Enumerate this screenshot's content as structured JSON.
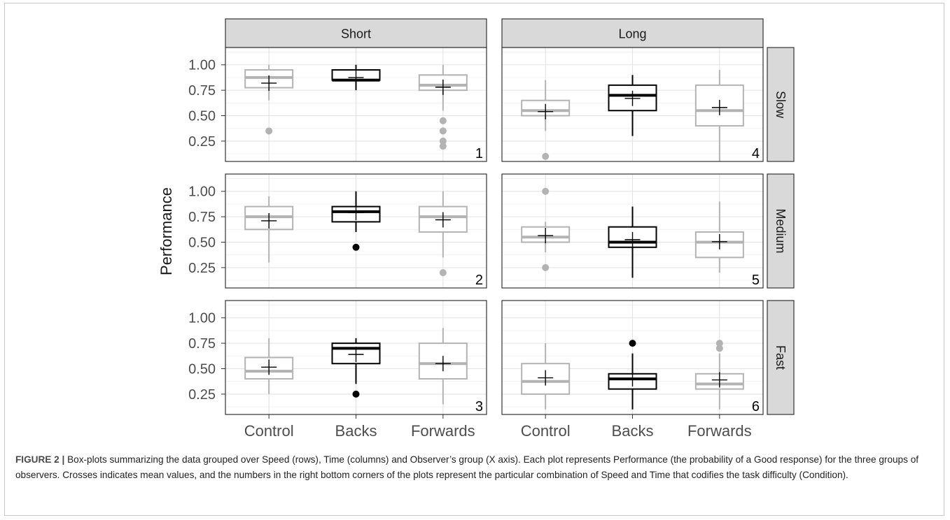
{
  "chart_data": {
    "type": "box",
    "ylabel": "Performance",
    "ylim": [
      0.05,
      1.17
    ],
    "y_ticks": [
      "0.25",
      "0.50",
      "0.75",
      "1.00"
    ],
    "y_tick_values": [
      0.25,
      0.5,
      0.75,
      1.0
    ],
    "categories": [
      "Control",
      "Backs",
      "Forwards"
    ],
    "columns": [
      "Short",
      "Long"
    ],
    "rows": [
      "Slow",
      "Medium",
      "Fast"
    ],
    "colors": {
      "Control": "#b3b3b3",
      "Backs": "#000000",
      "Forwards": "#b3b3b3"
    },
    "panels": [
      {
        "column": "Short",
        "row": "Slow",
        "label": "1",
        "boxes": [
          {
            "group": "Control",
            "lower_whisker": 0.65,
            "q1": 0.775,
            "median": 0.875,
            "q3": 0.95,
            "upper_whisker": 1.0,
            "mean": 0.82,
            "outliers": [
              0.35
            ]
          },
          {
            "group": "Backs",
            "lower_whisker": 0.75,
            "q1": 0.85,
            "median": 0.85,
            "q3": 0.95,
            "upper_whisker": 1.0,
            "mean": 0.875,
            "outliers": []
          },
          {
            "group": "Forwards",
            "lower_whisker": 0.55,
            "q1": 0.75,
            "median": 0.8,
            "q3": 0.9,
            "upper_whisker": 1.0,
            "mean": 0.78,
            "outliers": [
              0.45,
              0.35,
              0.25,
              0.2
            ]
          }
        ]
      },
      {
        "column": "Short",
        "row": "Medium",
        "label": "2",
        "boxes": [
          {
            "group": "Control",
            "lower_whisker": 0.3,
            "q1": 0.625,
            "median": 0.75,
            "q3": 0.85,
            "upper_whisker": 0.95,
            "mean": 0.71,
            "outliers": []
          },
          {
            "group": "Backs",
            "lower_whisker": 0.6,
            "q1": 0.7,
            "median": 0.8,
            "q3": 0.85,
            "upper_whisker": 1.0,
            "mean": 0.79,
            "outliers": [
              0.45
            ]
          },
          {
            "group": "Forwards",
            "lower_whisker": 0.35,
            "q1": 0.6,
            "median": 0.75,
            "q3": 0.85,
            "upper_whisker": 1.0,
            "mean": 0.72,
            "outliers": [
              0.2
            ]
          }
        ]
      },
      {
        "column": "Short",
        "row": "Fast",
        "label": "3",
        "boxes": [
          {
            "group": "Control",
            "lower_whisker": 0.25,
            "q1": 0.4,
            "median": 0.475,
            "q3": 0.61,
            "upper_whisker": 0.8,
            "mean": 0.515,
            "outliers": []
          },
          {
            "group": "Backs",
            "lower_whisker": 0.35,
            "q1": 0.55,
            "median": 0.7,
            "q3": 0.75,
            "upper_whisker": 0.8,
            "mean": 0.64,
            "outliers": [
              0.25
            ]
          },
          {
            "group": "Forwards",
            "lower_whisker": 0.15,
            "q1": 0.4,
            "median": 0.55,
            "q3": 0.75,
            "upper_whisker": 0.9,
            "mean": 0.55,
            "outliers": []
          }
        ]
      },
      {
        "column": "Long",
        "row": "Slow",
        "label": "4",
        "boxes": [
          {
            "group": "Control",
            "lower_whisker": 0.35,
            "q1": 0.5,
            "median": 0.55,
            "q3": 0.65,
            "upper_whisker": 0.85,
            "mean": 0.54,
            "outliers": [
              0.1
            ]
          },
          {
            "group": "Backs",
            "lower_whisker": 0.3,
            "q1": 0.55,
            "median": 0.7,
            "q3": 0.8,
            "upper_whisker": 0.9,
            "mean": 0.67,
            "outliers": []
          },
          {
            "group": "Forwards",
            "lower_whisker": 0.05,
            "q1": 0.4,
            "median": 0.55,
            "q3": 0.8,
            "upper_whisker": 0.95,
            "mean": 0.58,
            "outliers": []
          }
        ]
      },
      {
        "column": "Long",
        "row": "Medium",
        "label": "5",
        "boxes": [
          {
            "group": "Control",
            "lower_whisker": 0.4,
            "q1": 0.5,
            "median": 0.55,
            "q3": 0.65,
            "upper_whisker": 0.7,
            "mean": 0.565,
            "outliers": [
              1.0,
              0.25
            ]
          },
          {
            "group": "Backs",
            "lower_whisker": 0.15,
            "q1": 0.45,
            "median": 0.5,
            "q3": 0.65,
            "upper_whisker": 0.85,
            "mean": 0.525,
            "outliers": []
          },
          {
            "group": "Forwards",
            "lower_whisker": 0.2,
            "q1": 0.35,
            "median": 0.5,
            "q3": 0.6,
            "upper_whisker": 0.9,
            "mean": 0.505,
            "outliers": []
          }
        ]
      },
      {
        "column": "Long",
        "row": "Fast",
        "label": "6",
        "boxes": [
          {
            "group": "Control",
            "lower_whisker": 0.1,
            "q1": 0.25,
            "median": 0.375,
            "q3": 0.55,
            "upper_whisker": 0.75,
            "mean": 0.41,
            "outliers": []
          },
          {
            "group": "Backs",
            "lower_whisker": 0.1,
            "q1": 0.3,
            "median": 0.4,
            "q3": 0.45,
            "upper_whisker": 0.65,
            "mean": 0.4,
            "outliers": [
              0.75
            ]
          },
          {
            "group": "Forwards",
            "lower_whisker": 0.1,
            "q1": 0.3,
            "median": 0.35,
            "q3": 0.45,
            "upper_whisker": 0.65,
            "mean": 0.39,
            "outliers": [
              0.75,
              0.7
            ]
          }
        ]
      }
    ]
  },
  "caption": {
    "lead": "FIGURE 2 |",
    "text": "Box-plots summarizing the data grouped over Speed (rows), Time (columns) and Observer’s group (X axis). Each plot represents Performance (the probability of a Good response) for the three groups of observers. Crosses indicates mean values, and the numbers in the right bottom corners of the plots represent the particular combination of Speed and Time that codifies the task difficulty (Condition)."
  }
}
